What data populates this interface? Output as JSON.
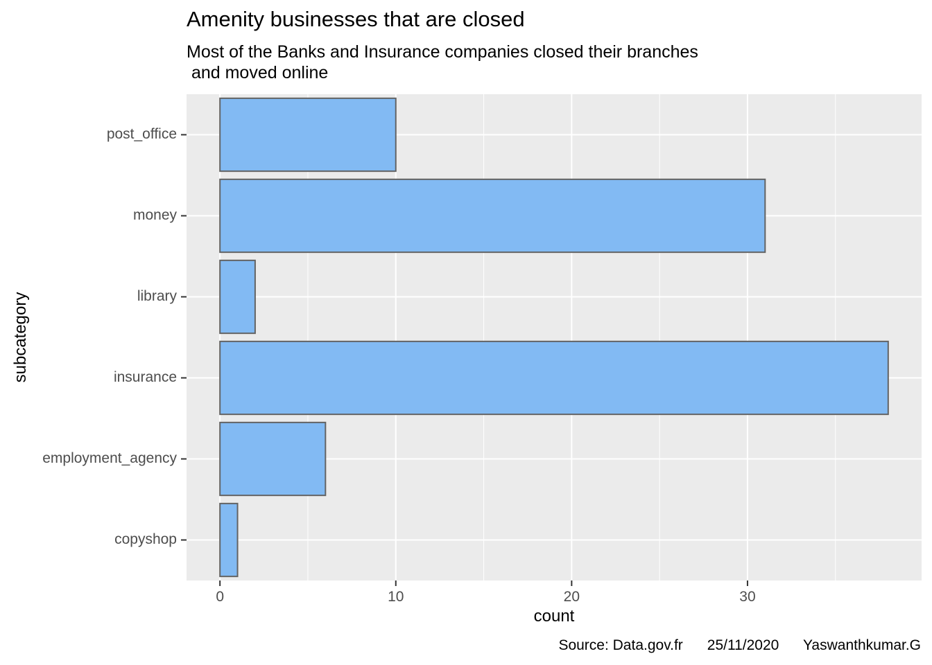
{
  "chart_data": {
    "type": "bar",
    "orientation": "horizontal",
    "title": "Amenity businesses that are closed",
    "subtitle": "Most of the Banks and Insurance companies closed their branches\n and moved online",
    "xlabel": "count",
    "ylabel": "subcategory",
    "caption": "Source: Data.gov.fr      25/11/2020      Yaswanthkumar.G",
    "categories": [
      "post_office",
      "money",
      "library",
      "insurance",
      "employment_agency",
      "copyshop"
    ],
    "values": [
      10,
      31,
      2,
      38,
      6,
      1
    ],
    "xlim": [
      -1.9,
      39.9
    ],
    "xticks": [
      0,
      10,
      20,
      30
    ],
    "xticks_minor": [
      5,
      15,
      25,
      35
    ],
    "grid": true,
    "colors": {
      "panel": "#EBEBEB",
      "grid": "#FFFFFF",
      "bar_fill": "#82BAF3",
      "bar_stroke": "#636363",
      "tick_text": "#4D4D4D",
      "tick_mark": "#333333"
    }
  }
}
